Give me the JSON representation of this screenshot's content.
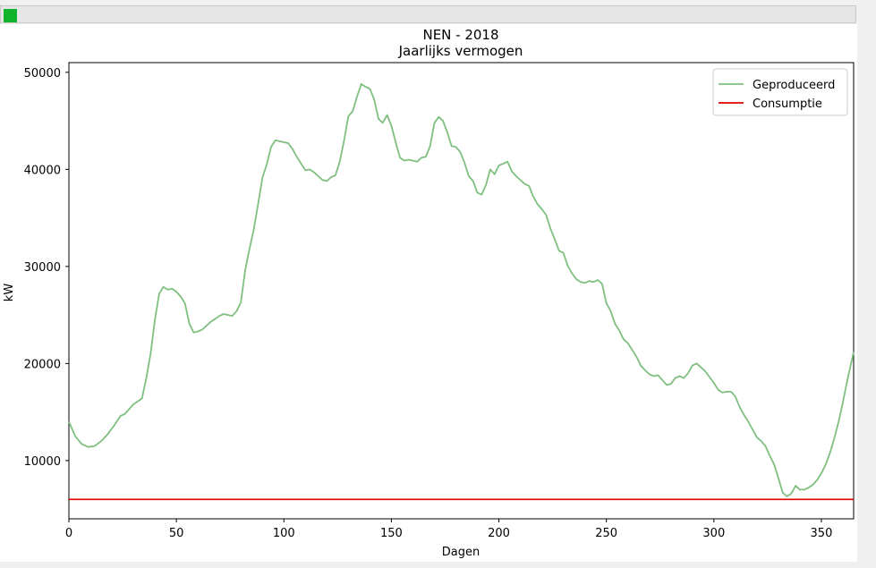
{
  "window": {
    "icon": "green-square-icon",
    "icon_color": "#0fb42a"
  },
  "chart_data": {
    "type": "line",
    "title": "NEN - 2018",
    "subtitle": "Jaarlijks vermogen",
    "xlabel": "Dagen",
    "ylabel": "kW",
    "xlim": [
      0,
      365
    ],
    "ylim": [
      4000,
      51000
    ],
    "xticks": [
      0,
      50,
      100,
      150,
      200,
      250,
      300,
      350
    ],
    "xtick_labels": [
      "0",
      "50",
      "100",
      "150",
      "200",
      "250",
      "300",
      "350"
    ],
    "yticks": [
      10000,
      20000,
      30000,
      40000,
      50000
    ],
    "ytick_labels": [
      "10000",
      "20000",
      "30000",
      "40000",
      "50000"
    ],
    "grid": false,
    "legend_position": "top-right",
    "series": [
      {
        "name": "Geproduceerd",
        "color": "#7fbf7f",
        "x": [
          0,
          3,
          6,
          9,
          12,
          15,
          18,
          21,
          24,
          26,
          28,
          30,
          32,
          34,
          36,
          38,
          40,
          42,
          44,
          46,
          48,
          50,
          52,
          54,
          56,
          58,
          60,
          62,
          64,
          66,
          68,
          70,
          72,
          74,
          76,
          78,
          80,
          82,
          84,
          86,
          88,
          90,
          92,
          94,
          96,
          98,
          100,
          102,
          104,
          106,
          108,
          110,
          112,
          114,
          116,
          118,
          120,
          122,
          124,
          126,
          128,
          130,
          132,
          134,
          136,
          138,
          140,
          142,
          144,
          146,
          148,
          150,
          152,
          154,
          156,
          158,
          160,
          162,
          164,
          166,
          168,
          170,
          172,
          174,
          176,
          178,
          180,
          182,
          184,
          186,
          188,
          190,
          192,
          194,
          196,
          198,
          200,
          202,
          204,
          206,
          208,
          210,
          212,
          214,
          216,
          218,
          220,
          222,
          224,
          226,
          228,
          230,
          232,
          234,
          236,
          238,
          240,
          242,
          244,
          246,
          248,
          250,
          252,
          254,
          256,
          258,
          260,
          262,
          264,
          266,
          268,
          270,
          272,
          274,
          276,
          278,
          280,
          282,
          284,
          286,
          288,
          290,
          292,
          294,
          296,
          298,
          300,
          302,
          304,
          306,
          308,
          310,
          312,
          314,
          316,
          318,
          320,
          322,
          324,
          326,
          328,
          330,
          332,
          334,
          336,
          338,
          340,
          342,
          344,
          346,
          348,
          350,
          352,
          354,
          356,
          358,
          360,
          362,
          365
        ],
        "y": [
          14000,
          12500,
          11700,
          11400,
          11500,
          12000,
          12700,
          13600,
          14600,
          14800,
          15300,
          15800,
          16100,
          16400,
          18500,
          21000,
          24500,
          27200,
          27900,
          27600,
          27700,
          27400,
          26900,
          26200,
          24100,
          23200,
          23300,
          23500,
          23900,
          24300,
          24600,
          24900,
          25100,
          25000,
          24900,
          25400,
          26300,
          29600,
          31800,
          33800,
          36400,
          39100,
          40500,
          42300,
          43000,
          42900,
          42800,
          42700,
          42100,
          41300,
          40600,
          39900,
          40000,
          39700,
          39300,
          38900,
          38800,
          39200,
          39400,
          40800,
          43000,
          45500,
          46000,
          47500,
          48800,
          48500,
          48300,
          47200,
          45200,
          44800,
          45600,
          44500,
          42800,
          41200,
          40900,
          41000,
          40900,
          40800,
          41200,
          41300,
          42400,
          44800,
          45400,
          45000,
          43800,
          42400,
          42300,
          41800,
          40700,
          39300,
          38800,
          37600,
          37400,
          38400,
          40000,
          39500,
          40400,
          40600,
          40800,
          39800,
          39300,
          38900,
          38500,
          38300,
          37200,
          36400,
          35900,
          35300,
          33900,
          32800,
          31600,
          31400,
          30100,
          29300,
          28700,
          28400,
          28300,
          28500,
          28400,
          28600,
          28200,
          26200,
          25400,
          24100,
          23400,
          22500,
          22100,
          21400,
          20700,
          19800,
          19300,
          18900,
          18700,
          18800,
          18300,
          17800,
          17900,
          18500,
          18700,
          18500,
          19000,
          19800,
          20000,
          19600,
          19200,
          18600,
          18000,
          17300,
          17000,
          17100,
          17100,
          16600,
          15500,
          14700,
          14000,
          13200,
          12400,
          12000,
          11500,
          10500,
          9600,
          8200,
          6700,
          6300,
          6600,
          7400,
          7000,
          7000,
          7200,
          7500,
          8000,
          8700,
          9600,
          10800,
          12300,
          14000,
          16000,
          18200,
          21200
        ]
      },
      {
        "name": "Consumptie",
        "color": "#e00000",
        "x": [
          0,
          365
        ],
        "y": [
          6000,
          6000
        ]
      }
    ]
  }
}
